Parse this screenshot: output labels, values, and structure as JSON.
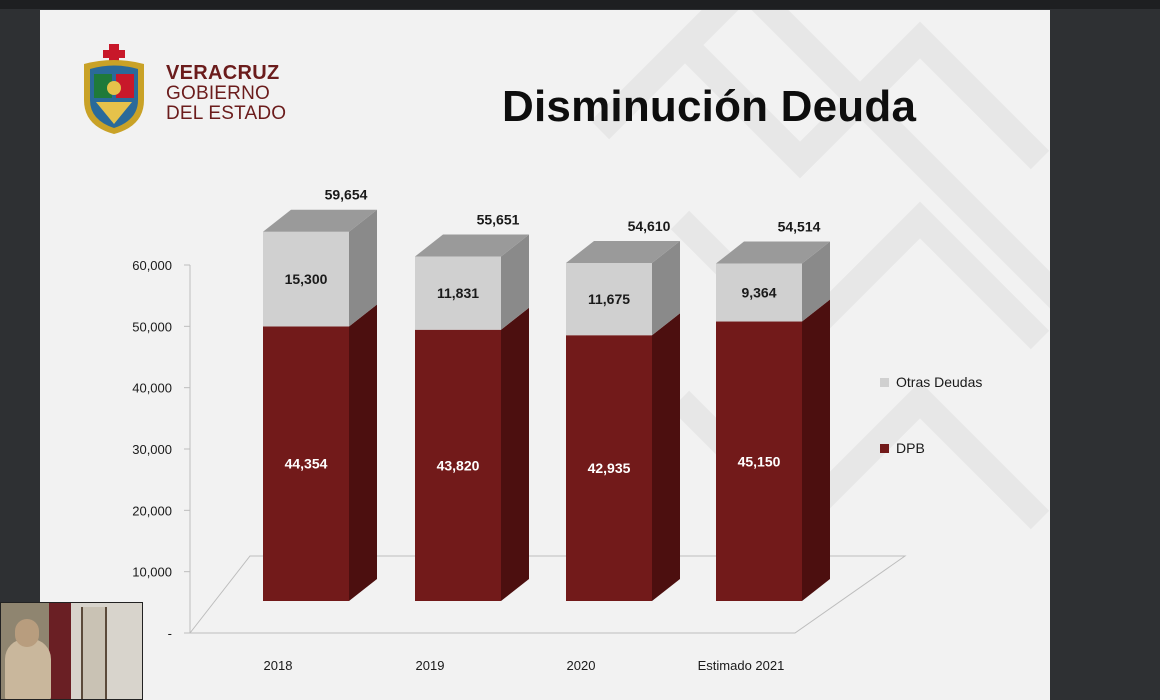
{
  "slide": {
    "title": "Disminución Deuda",
    "brand": {
      "line1": "VERACRUZ",
      "line2": "GOBIERNO",
      "line3": "DEL ESTADO"
    }
  },
  "colors": {
    "dpb": "#721a1a",
    "dpb_side": "#4c0f0f",
    "dpb_top": "#8a2a2a",
    "otras": "#d0d0d0",
    "otras_side": "#8a8a8a",
    "otras_top": "#9a9a9a",
    "brand": "#6b1c1c"
  },
  "chart_data": {
    "type": "bar",
    "stacked": true,
    "three_d": true,
    "title": "",
    "categories": [
      "2018",
      "2019",
      "2020",
      "Estimado 2021"
    ],
    "series": [
      {
        "name": "DPB",
        "values": [
          44354,
          43820,
          42935,
          45150
        ]
      },
      {
        "name": "Otras Deudas",
        "values": [
          15300,
          11831,
          11675,
          9364
        ]
      }
    ],
    "totals": [
      59654,
      55651,
      54610,
      54514
    ],
    "value_labels": {
      "DPB": [
        "44,354",
        "43,820",
        "42,935",
        "45,150"
      ],
      "Otras Deudas": [
        "15,300",
        "11,831",
        "11,675",
        "9,364"
      ],
      "totals": [
        "59,654",
        "55,651",
        "54,610",
        "54,514"
      ]
    },
    "y_ticks": [
      "-",
      "10,000",
      "20,000",
      "30,000",
      "40,000",
      "50,000",
      "60,000"
    ],
    "ylim": [
      0,
      60000
    ],
    "legend": {
      "placement": "right",
      "order": [
        "Otras Deudas",
        "DPB"
      ]
    },
    "grid": false
  }
}
